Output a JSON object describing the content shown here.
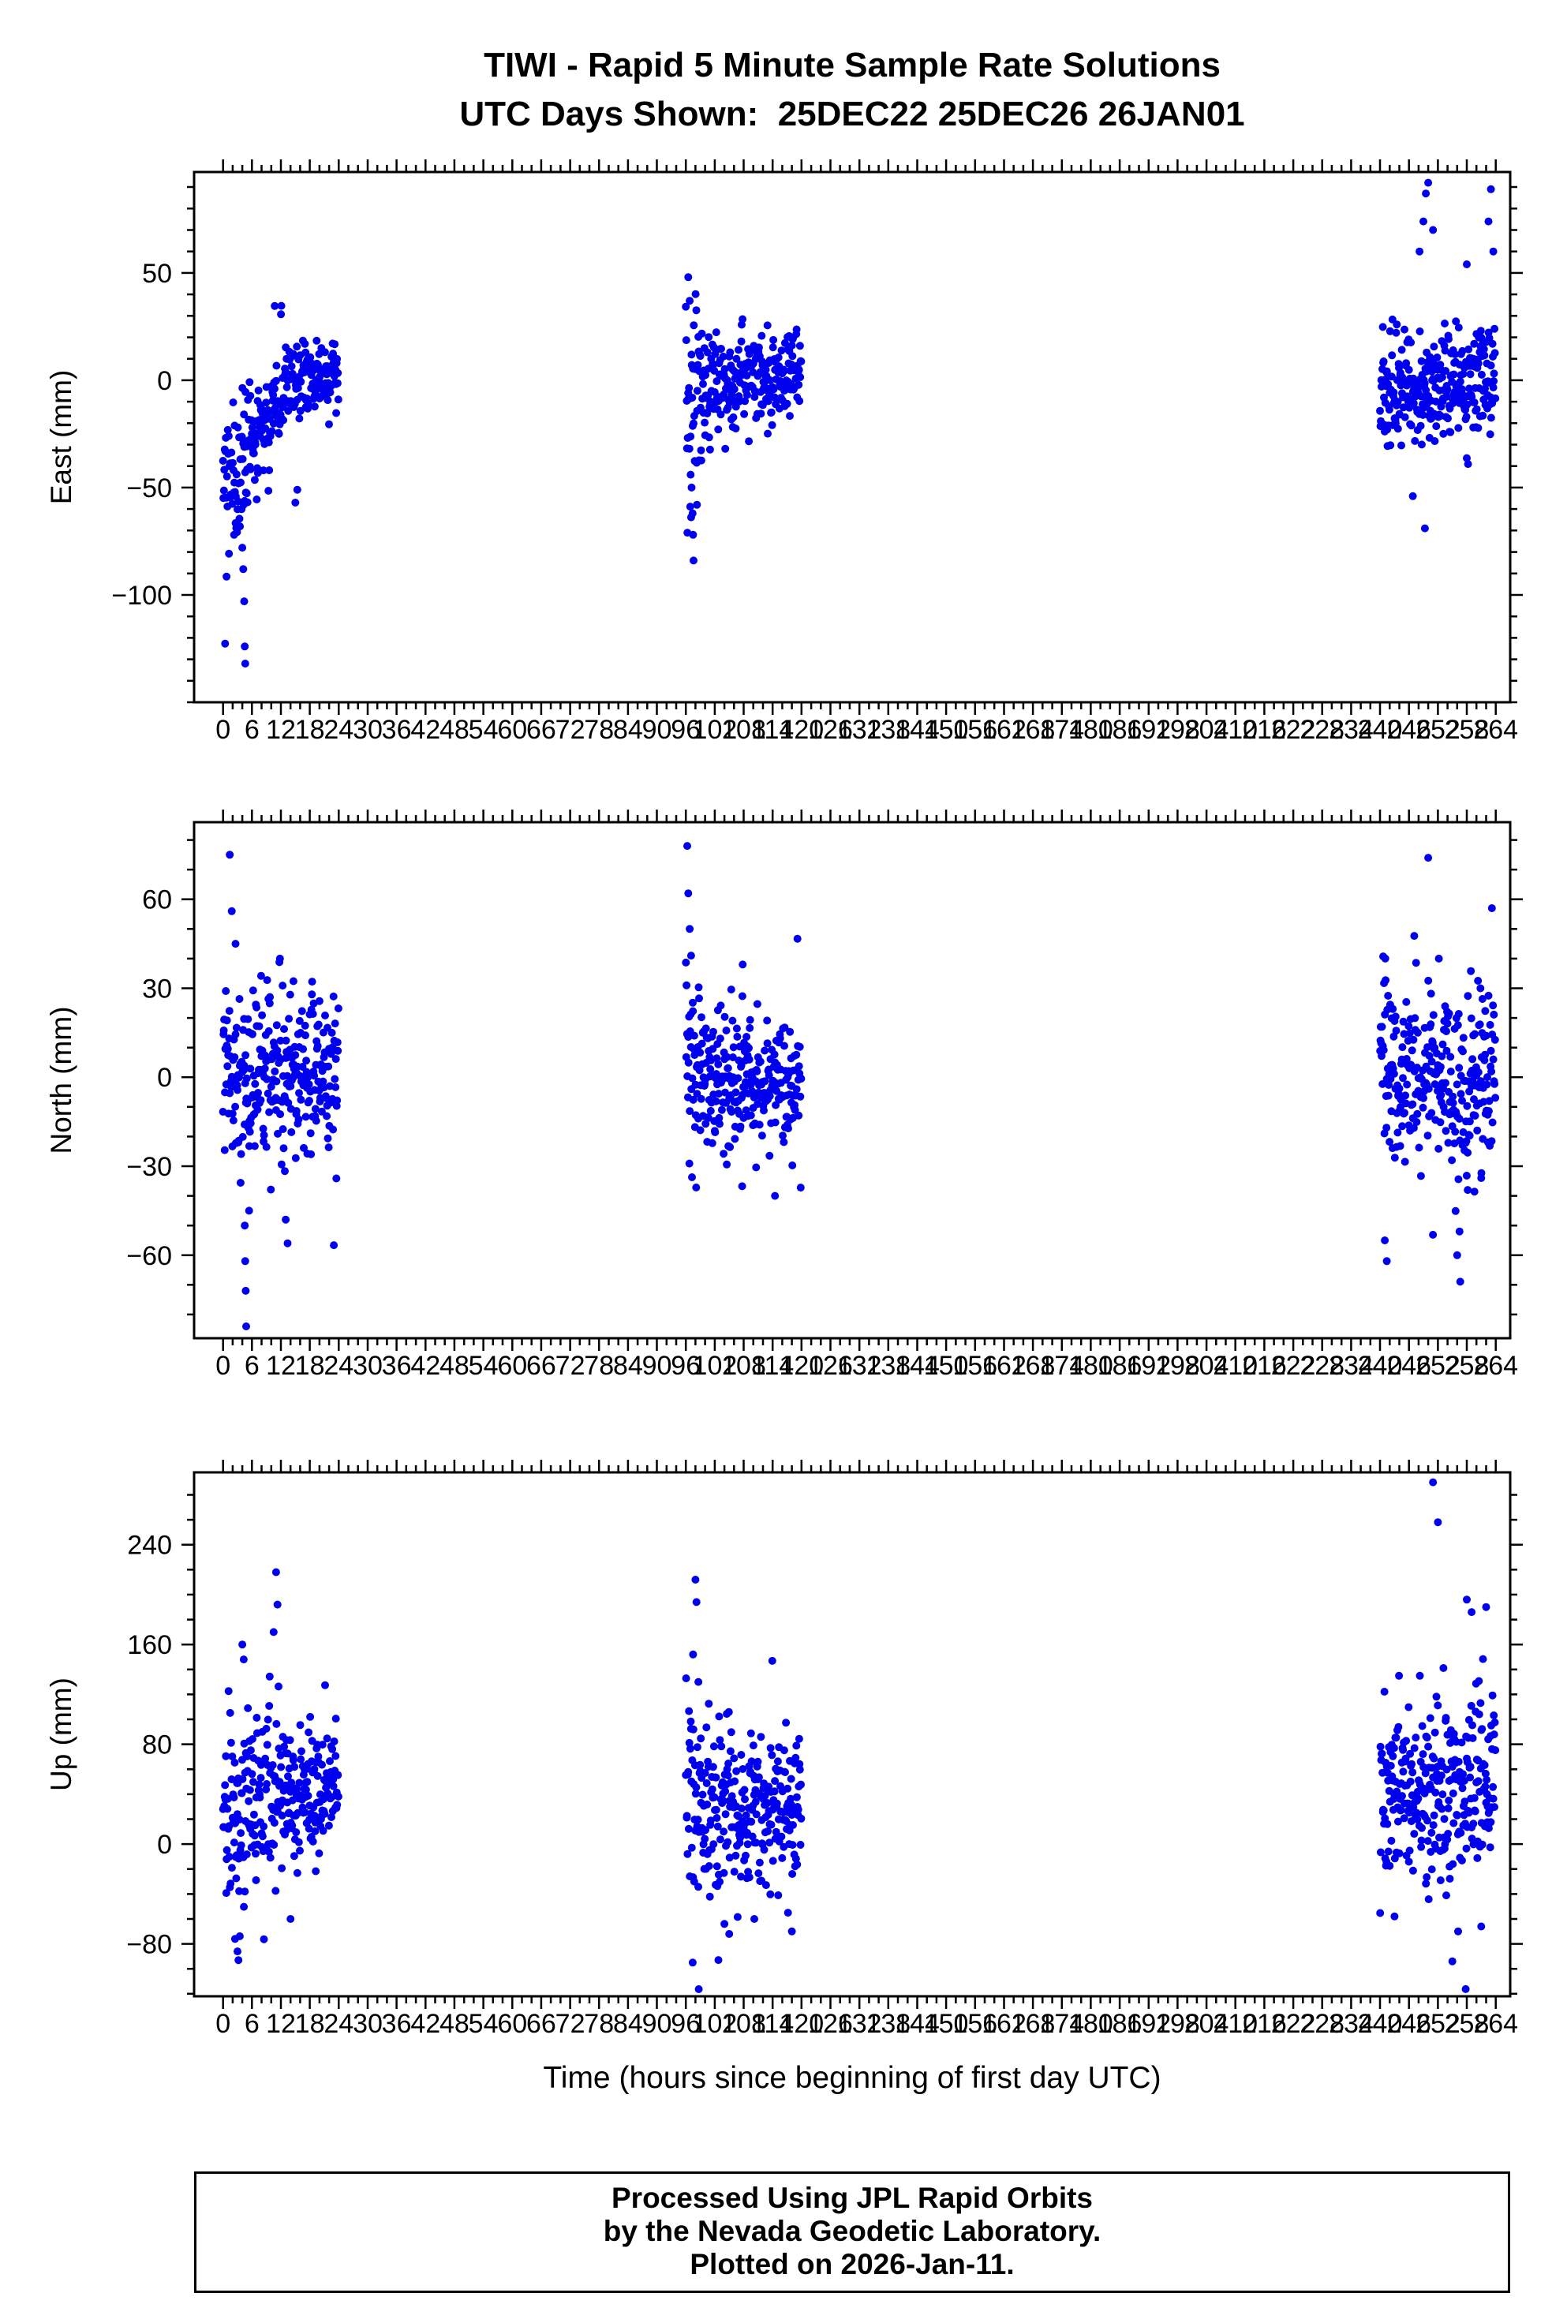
{
  "title": "TIWI - Rapid 5 Minute Sample Rate Solutions",
  "subtitle": "UTC Days Shown:  25DEC22 25DEC26 26JAN01",
  "footer": {
    "lines": [
      "Processed Using JPL Rapid Orbits",
      "by the Nevada Geodetic Laboratory.",
      "Plotted on 2026-Jan-11."
    ]
  },
  "chart_data": {
    "type": "scatter",
    "title": "TIWI - Rapid 5 Minute Sample Rate Solutions",
    "subtitle": "UTC Days Shown:  25DEC22 25DEC26 26JAN01",
    "station": "TIWI",
    "utc_days": [
      "25DEC22",
      "25DEC26",
      "26JAN01"
    ],
    "day_windows_hours": [
      [
        0,
        24
      ],
      [
        96,
        120
      ],
      [
        240,
        264
      ]
    ],
    "sample_interval_minutes": 5,
    "xlabel": "Time (hours since beginning of first day UTC)",
    "xlim": [
      -6,
      267
    ],
    "x_major_step": 6,
    "x_minor_step": 2,
    "xticks": [
      0,
      6,
      12,
      18,
      24,
      30,
      36,
      42,
      48,
      54,
      60,
      66,
      72,
      78,
      84,
      90,
      96,
      102,
      108,
      114,
      120,
      126,
      132,
      138,
      144,
      150,
      156,
      162,
      168,
      174,
      180,
      186,
      192,
      198,
      204,
      210,
      216,
      222,
      228,
      234,
      240,
      246,
      252,
      258,
      264
    ],
    "grid": "off",
    "legend": "none",
    "marker": {
      "color": "#0000ee",
      "radius": 5
    },
    "seed": 42,
    "subplots": [
      {
        "name": "east",
        "ylabel": "East (mm)",
        "ylim": [
          -150,
          97
        ],
        "yticks": [
          -100,
          -50,
          0,
          50
        ],
        "y_minor_step": 10,
        "clusters": [
          {
            "t": [
              0,
              24
            ],
            "mean": [
              [
                0,
                -52
              ],
              [
                4,
                -38
              ],
              [
                10,
                -12
              ],
              [
                16,
                -1
              ],
              [
                24,
                2
              ]
            ],
            "sigma": [
              [
                0,
                19
              ],
              [
                6,
                14
              ],
              [
                12,
                10
              ],
              [
                24,
                9
              ]
            ],
            "outliers": [
              [
                4.0,
                -78
              ],
              [
                4.2,
                -88
              ],
              [
                4.4,
                -103
              ],
              [
                4.5,
                -124
              ],
              [
                4.6,
                -132
              ],
              [
                2.3,
                -72
              ],
              [
                15.0,
                -57
              ],
              [
                15.4,
                -51
              ]
            ]
          },
          {
            "t": [
              96,
              120
            ],
            "mean": [
              [
                96,
                -14
              ],
              [
                100,
                -7
              ],
              [
                106,
                -2
              ],
              [
                120,
                3
              ]
            ],
            "sigma": [
              [
                96,
                26
              ],
              [
                100,
                14
              ],
              [
                106,
                10
              ],
              [
                120,
                9
              ]
            ],
            "outliers": [
              [
                97.0,
                -44
              ],
              [
                97.2,
                -50
              ],
              [
                97.4,
                -62
              ],
              [
                97.5,
                -72
              ],
              [
                97.6,
                -84
              ],
              [
                98.3,
                -58
              ],
              [
                96.5,
                48
              ],
              [
                96.8,
                37
              ]
            ]
          },
          {
            "t": [
              240,
              264
            ],
            "mean": [
              [
                240,
                -3
              ],
              [
                252,
                -2
              ],
              [
                264,
                1
              ]
            ],
            "sigma": [
              [
                240,
                13
              ],
              [
                252,
                12
              ],
              [
                264,
                14
              ]
            ],
            "outliers": [
              [
                248.2,
                60
              ],
              [
                249.0,
                74
              ],
              [
                249.5,
                87
              ],
              [
                250.0,
                92
              ],
              [
                251.0,
                70
              ],
              [
                258.0,
                54
              ],
              [
                262.5,
                74
              ],
              [
                263.0,
                89
              ],
              [
                263.5,
                60
              ],
              [
                249.3,
                -69
              ],
              [
                246.8,
                -54
              ]
            ]
          }
        ]
      },
      {
        "name": "north",
        "ylabel": "North (mm)",
        "ylim": [
          -88,
          86
        ],
        "yticks": [
          -60,
          -30,
          0,
          30,
          60
        ],
        "y_minor_step": 10,
        "clusters": [
          {
            "t": [
              0,
              24
            ],
            "mean": [
              [
                0,
                4
              ],
              [
                6,
                0
              ],
              [
                24,
                0
              ]
            ],
            "sigma": [
              [
                0,
                22
              ],
              [
                6,
                15
              ],
              [
                24,
                11
              ]
            ],
            "outliers": [
              [
                1.4,
                75
              ],
              [
                1.8,
                56
              ],
              [
                2.6,
                45
              ],
              [
                4.5,
                -50
              ],
              [
                4.6,
                -62
              ],
              [
                4.7,
                -72
              ],
              [
                4.8,
                -84
              ],
              [
                5.4,
                -45
              ],
              [
                13.0,
                -48
              ],
              [
                13.4,
                -56
              ],
              [
                11.8,
                40
              ]
            ]
          },
          {
            "t": [
              96,
              120
            ],
            "mean": [
              [
                96,
                4
              ],
              [
                102,
                -3
              ],
              [
                120,
                -3
              ]
            ],
            "sigma": [
              [
                96,
                20
              ],
              [
                100,
                13
              ],
              [
                120,
                10
              ]
            ],
            "outliers": [
              [
                96.3,
                78
              ],
              [
                96.5,
                62
              ],
              [
                96.8,
                50
              ],
              [
                97.1,
                41
              ],
              [
                114.5,
                -40
              ],
              [
                107.8,
                38
              ]
            ]
          },
          {
            "t": [
              240,
              264
            ],
            "mean": [
              [
                240,
                8
              ],
              [
                248,
                4
              ],
              [
                256,
                -5
              ],
              [
                264,
                1
              ]
            ],
            "sigma": [
              [
                240,
                14
              ],
              [
                252,
                13
              ],
              [
                264,
                15
              ]
            ],
            "outliers": [
              [
                250.0,
                74
              ],
              [
                241.0,
                -55
              ],
              [
                241.4,
                -62
              ],
              [
                256.0,
                -60
              ],
              [
                256.5,
                -52
              ],
              [
                258.2,
                -38
              ],
              [
                261.0,
                -34
              ],
              [
                252.2,
                40
              ],
              [
                263.2,
                57
              ]
            ]
          }
        ]
      },
      {
        "name": "up",
        "ylabel": "Up (mm)",
        "ylim": [
          -122,
          298
        ],
        "yticks": [
          -80,
          0,
          80,
          160,
          240
        ],
        "y_minor_step": 20,
        "clusters": [
          {
            "t": [
              0,
              24
            ],
            "mean": [
              [
                0,
                8
              ],
              [
                3,
                26
              ],
              [
                8,
                40
              ],
              [
                16,
                45
              ],
              [
                24,
                42
              ]
            ],
            "sigma": [
              [
                0,
                42
              ],
              [
                6,
                34
              ],
              [
                16,
                26
              ],
              [
                24,
                24
              ]
            ],
            "outliers": [
              [
                11.0,
                218
              ],
              [
                11.3,
                192
              ],
              [
                10.5,
                170
              ],
              [
                4.0,
                160
              ],
              [
                4.3,
                148
              ],
              [
                2.5,
                -76
              ],
              [
                3.0,
                -86
              ],
              [
                3.2,
                -93
              ],
              [
                14.0,
                -60
              ]
            ]
          },
          {
            "t": [
              96,
              120
            ],
            "mean": [
              [
                96,
                38
              ],
              [
                100,
                30
              ],
              [
                110,
                27
              ],
              [
                120,
                30
              ]
            ],
            "sigma": [
              [
                96,
                44
              ],
              [
                100,
                34
              ],
              [
                110,
                30
              ],
              [
                120,
                28
              ]
            ],
            "outliers": [
              [
                98.0,
                212
              ],
              [
                98.2,
                194
              ],
              [
                97.5,
                152
              ],
              [
                98.6,
                130
              ],
              [
                104.0,
                -64
              ],
              [
                105.0,
                -72
              ],
              [
                110.2,
                -60
              ],
              [
                117.2,
                -55
              ],
              [
                118.0,
                -70
              ]
            ]
          },
          {
            "t": [
              240,
              264
            ],
            "mean": [
              [
                240,
                44
              ],
              [
                250,
                38
              ],
              [
                258,
                45
              ],
              [
                264,
                50
              ]
            ],
            "sigma": [
              [
                240,
                34
              ],
              [
                252,
                33
              ],
              [
                264,
                36
              ]
            ],
            "outliers": [
              [
                251.0,
                290
              ],
              [
                252.0,
                258
              ],
              [
                258.0,
                196
              ],
              [
                259.0,
                186
              ],
              [
                262.0,
                190
              ],
              [
                255.0,
                -94
              ],
              [
                256.2,
                -70
              ],
              [
                261.0,
                -66
              ],
              [
                243.0,
                -58
              ]
            ]
          }
        ]
      }
    ]
  }
}
